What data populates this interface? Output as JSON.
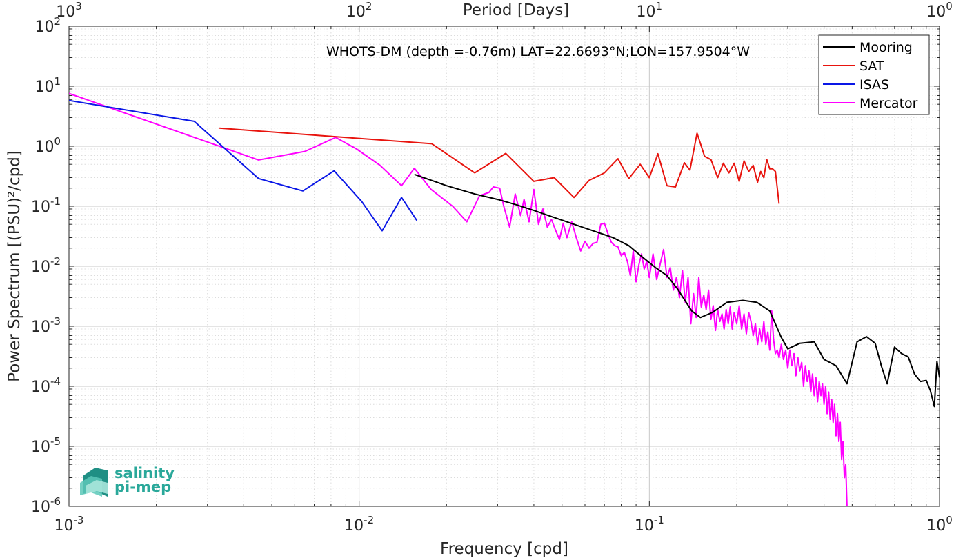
{
  "chart_data": {
    "type": "line",
    "title": "WHOTS-DM (depth =-0.76m) LAT=22.6693°N;LON=157.9504°W",
    "xlabel": "Frequency [cpd]",
    "ylabel": "Power Spectrum [(PSU)²/cpd]",
    "top_xlabel": "Period [Days]",
    "xscale": "log",
    "yscale": "log",
    "xlim": [
      0.001,
      1
    ],
    "ylim": [
      1e-06,
      100
    ],
    "grid": true,
    "legend_position": "top-right",
    "x_ticks": [
      {
        "base": "10",
        "exp": "-3"
      },
      {
        "base": "10",
        "exp": "-2"
      },
      {
        "base": "10",
        "exp": "-1"
      },
      {
        "base": "10",
        "exp": "0"
      }
    ],
    "top_ticks": [
      {
        "base": "10",
        "exp": "3"
      },
      {
        "base": "10",
        "exp": "2"
      },
      {
        "base": "10",
        "exp": "1"
      },
      {
        "base": "10",
        "exp": "0"
      }
    ],
    "y_ticks": [
      {
        "base": "10",
        "exp": "2"
      },
      {
        "base": "10",
        "exp": "1"
      },
      {
        "base": "10",
        "exp": "0"
      },
      {
        "base": "10",
        "exp": "-1"
      },
      {
        "base": "10",
        "exp": "-2"
      },
      {
        "base": "10",
        "exp": "-3"
      },
      {
        "base": "10",
        "exp": "-4"
      },
      {
        "base": "10",
        "exp": "-5"
      },
      {
        "base": "10",
        "exp": "-6"
      }
    ],
    "series": [
      {
        "name": "Mooring",
        "color": "#000000",
        "points": [
          [
            0.0155,
            0.34
          ],
          [
            0.02,
            0.22
          ],
          [
            0.025,
            0.16
          ],
          [
            0.03,
            0.13
          ],
          [
            0.035,
            0.105
          ],
          [
            0.04,
            0.085
          ],
          [
            0.047,
            0.065
          ],
          [
            0.055,
            0.05
          ],
          [
            0.065,
            0.038
          ],
          [
            0.075,
            0.03
          ],
          [
            0.085,
            0.022
          ],
          [
            0.095,
            0.014
          ],
          [
            0.105,
            0.0095
          ],
          [
            0.115,
            0.007
          ],
          [
            0.125,
            0.0042
          ],
          [
            0.14,
            0.0018
          ],
          [
            0.15,
            0.0014
          ],
          [
            0.165,
            0.0017
          ],
          [
            0.185,
            0.0025
          ],
          [
            0.21,
            0.0027
          ],
          [
            0.235,
            0.0025
          ],
          [
            0.26,
            0.0018
          ],
          [
            0.285,
            0.00065
          ],
          [
            0.3,
            0.00042
          ],
          [
            0.33,
            0.00052
          ],
          [
            0.37,
            0.00055
          ],
          [
            0.4,
            0.00028
          ],
          [
            0.44,
            0.00022
          ],
          [
            0.48,
            0.00011
          ],
          [
            0.52,
            0.00055
          ],
          [
            0.56,
            0.00067
          ],
          [
            0.6,
            0.00052
          ],
          [
            0.63,
            0.00022
          ],
          [
            0.66,
            0.00011
          ],
          [
            0.7,
            0.00045
          ],
          [
            0.74,
            0.00035
          ],
          [
            0.78,
            0.00031
          ],
          [
            0.82,
            0.00016
          ],
          [
            0.86,
            0.00012
          ],
          [
            0.9,
            0.000125
          ],
          [
            0.93,
            8.5e-05
          ],
          [
            0.96,
            4.6e-05
          ],
          [
            0.98,
            0.00026
          ],
          [
            1.0,
            0.00014
          ]
        ]
      },
      {
        "name": "SAT",
        "color": "#e8140e",
        "points": [
          [
            0.0033,
            2.0
          ],
          [
            0.0082,
            1.45
          ],
          [
            0.0178,
            1.1
          ],
          [
            0.025,
            0.36
          ],
          [
            0.032,
            0.76
          ],
          [
            0.04,
            0.26
          ],
          [
            0.047,
            0.3
          ],
          [
            0.055,
            0.14
          ],
          [
            0.062,
            0.27
          ],
          [
            0.07,
            0.36
          ],
          [
            0.078,
            0.62
          ],
          [
            0.085,
            0.29
          ],
          [
            0.093,
            0.5
          ],
          [
            0.1,
            0.3
          ],
          [
            0.107,
            0.75
          ],
          [
            0.115,
            0.22
          ],
          [
            0.123,
            0.21
          ],
          [
            0.132,
            0.53
          ],
          [
            0.138,
            0.4
          ],
          [
            0.146,
            1.65
          ],
          [
            0.155,
            0.68
          ],
          [
            0.163,
            0.6
          ],
          [
            0.172,
            0.3
          ],
          [
            0.18,
            0.52
          ],
          [
            0.188,
            0.36
          ],
          [
            0.196,
            0.52
          ],
          [
            0.204,
            0.26
          ],
          [
            0.212,
            0.57
          ],
          [
            0.22,
            0.38
          ],
          [
            0.228,
            0.48
          ],
          [
            0.236,
            0.25
          ],
          [
            0.242,
            0.38
          ],
          [
            0.248,
            0.3
          ],
          [
            0.254,
            0.6
          ],
          [
            0.26,
            0.42
          ],
          [
            0.266,
            0.42
          ],
          [
            0.272,
            0.38
          ],
          [
            0.28,
            0.11
          ]
        ]
      },
      {
        "name": "ISAS",
        "color": "#0a17e6",
        "points": [
          [
            0.001,
            5.8
          ],
          [
            0.0027,
            2.6
          ],
          [
            0.0045,
            0.29
          ],
          [
            0.0064,
            0.18
          ],
          [
            0.0082,
            0.39
          ],
          [
            0.0102,
            0.12
          ],
          [
            0.012,
            0.039
          ],
          [
            0.014,
            0.14
          ],
          [
            0.0158,
            0.058
          ]
        ]
      },
      {
        "name": "Mercator",
        "color": "#ff00ff",
        "points": [
          [
            0.001,
            7.6
          ],
          [
            0.0025,
            1.6
          ],
          [
            0.0045,
            0.59
          ],
          [
            0.0065,
            0.82
          ],
          [
            0.0083,
            1.4
          ],
          [
            0.0098,
            0.9
          ],
          [
            0.0118,
            0.48
          ],
          [
            0.014,
            0.22
          ],
          [
            0.0155,
            0.43
          ],
          [
            0.0177,
            0.19
          ],
          [
            0.021,
            0.1
          ],
          [
            0.0235,
            0.055
          ],
          [
            0.026,
            0.15
          ],
          [
            0.028,
            0.17
          ],
          [
            0.029,
            0.21
          ],
          [
            0.0305,
            0.2
          ],
          [
            0.0315,
            0.1
          ],
          [
            0.033,
            0.045
          ],
          [
            0.0345,
            0.16
          ],
          [
            0.036,
            0.07
          ],
          [
            0.037,
            0.13
          ],
          [
            0.0385,
            0.055
          ],
          [
            0.04,
            0.19
          ],
          [
            0.0415,
            0.05
          ],
          [
            0.043,
            0.09
          ],
          [
            0.0445,
            0.045
          ],
          [
            0.046,
            0.06
          ],
          [
            0.0475,
            0.04
          ],
          [
            0.049,
            0.028
          ],
          [
            0.0505,
            0.052
          ],
          [
            0.052,
            0.03
          ],
          [
            0.054,
            0.055
          ],
          [
            0.056,
            0.03
          ],
          [
            0.058,
            0.018
          ],
          [
            0.06,
            0.026
          ],
          [
            0.062,
            0.02
          ],
          [
            0.064,
            0.024
          ],
          [
            0.066,
            0.025
          ],
          [
            0.068,
            0.05
          ],
          [
            0.07,
            0.052
          ],
          [
            0.072,
            0.035
          ],
          [
            0.074,
            0.025
          ],
          [
            0.076,
            0.022
          ],
          [
            0.078,
            0.021
          ],
          [
            0.08,
            0.015
          ],
          [
            0.082,
            0.017
          ],
          [
            0.084,
            0.012
          ],
          [
            0.086,
            0.007
          ],
          [
            0.088,
            0.018
          ],
          [
            0.09,
            0.0055
          ],
          [
            0.092,
            0.0105
          ],
          [
            0.094,
            0.016
          ],
          [
            0.096,
            0.009
          ],
          [
            0.098,
            0.012
          ],
          [
            0.1,
            0.0065
          ],
          [
            0.103,
            0.016
          ],
          [
            0.106,
            0.006
          ],
          [
            0.109,
            0.011
          ],
          [
            0.112,
            0.019
          ],
          [
            0.115,
            0.0065
          ],
          [
            0.118,
            0.0095
          ],
          [
            0.121,
            0.004
          ],
          [
            0.124,
            0.0065
          ],
          [
            0.127,
            0.003
          ],
          [
            0.13,
            0.0085
          ],
          [
            0.133,
            0.0025
          ],
          [
            0.136,
            0.0065
          ],
          [
            0.139,
            0.0011
          ],
          [
            0.142,
            0.0035
          ],
          [
            0.145,
            0.0014
          ],
          [
            0.148,
            0.0065
          ],
          [
            0.151,
            0.0021
          ],
          [
            0.154,
            0.0033
          ],
          [
            0.157,
            0.0019
          ],
          [
            0.16,
            0.004
          ],
          [
            0.163,
            0.0013
          ],
          [
            0.166,
            0.0022
          ],
          [
            0.169,
            0.00085
          ],
          [
            0.172,
            0.0019
          ],
          [
            0.175,
            0.0012
          ],
          [
            0.178,
            0.0016
          ],
          [
            0.181,
            0.0009
          ],
          [
            0.184,
            0.0019
          ],
          [
            0.187,
            0.0011
          ],
          [
            0.19,
            0.0021
          ],
          [
            0.193,
            0.0009
          ],
          [
            0.196,
            0.0017
          ],
          [
            0.2,
            0.0011
          ],
          [
            0.204,
            0.0022
          ],
          [
            0.208,
            0.0009
          ],
          [
            0.212,
            0.0016
          ],
          [
            0.216,
            0.00075
          ],
          [
            0.22,
            0.0017
          ],
          [
            0.224,
            0.0012
          ],
          [
            0.228,
            0.0007
          ],
          [
            0.232,
            0.0011
          ],
          [
            0.236,
            0.0005
          ],
          [
            0.24,
            0.0009
          ],
          [
            0.244,
            0.00055
          ],
          [
            0.248,
            0.0012
          ],
          [
            0.252,
            0.0005
          ],
          [
            0.256,
            0.0008
          ],
          [
            0.26,
            0.0004
          ],
          [
            0.264,
            0.0018
          ],
          [
            0.268,
            0.0006
          ],
          [
            0.272,
            0.00035
          ],
          [
            0.276,
            0.0004
          ],
          [
            0.28,
            0.0003
          ],
          [
            0.285,
            0.0005
          ],
          [
            0.29,
            0.00028
          ],
          [
            0.295,
            0.0004
          ],
          [
            0.3,
            0.0002
          ],
          [
            0.305,
            0.0004
          ],
          [
            0.31,
            0.00022
          ],
          [
            0.315,
            0.00035
          ],
          [
            0.32,
            0.00015
          ],
          [
            0.325,
            0.0003
          ],
          [
            0.33,
            0.00018
          ],
          [
            0.335,
            0.00025
          ],
          [
            0.34,
            0.0001
          ],
          [
            0.345,
            0.00022
          ],
          [
            0.35,
            0.00012
          ],
          [
            0.355,
            0.00018
          ],
          [
            0.36,
            8e-05
          ],
          [
            0.365,
            0.00016
          ],
          [
            0.37,
            7e-05
          ],
          [
            0.375,
            0.00014
          ],
          [
            0.38,
            5.5e-05
          ],
          [
            0.385,
            0.00012
          ],
          [
            0.39,
            7e-05
          ],
          [
            0.395,
            0.00011
          ],
          [
            0.4,
            5e-05
          ],
          [
            0.405,
            0.0001
          ],
          [
            0.41,
            3.5e-05
          ],
          [
            0.415,
            8e-05
          ],
          [
            0.42,
            2.8e-05
          ],
          [
            0.425,
            6e-05
          ],
          [
            0.43,
            2.5e-05
          ],
          [
            0.435,
            5e-05
          ],
          [
            0.44,
            1.5e-05
          ],
          [
            0.445,
            3.5e-05
          ],
          [
            0.45,
            1.2e-05
          ],
          [
            0.455,
            2.5e-05
          ],
          [
            0.46,
            6e-06
          ],
          [
            0.465,
            1.2e-05
          ],
          [
            0.47,
            3e-06
          ],
          [
            0.475,
            5e-06
          ],
          [
            0.48,
            1e-06
          ]
        ]
      }
    ]
  },
  "logo": {
    "line1": "salinity",
    "line2": "pi-mep"
  },
  "colors": {
    "grid": "#dcdcdc",
    "axis": "#262626",
    "logo": "#2aa89a"
  }
}
